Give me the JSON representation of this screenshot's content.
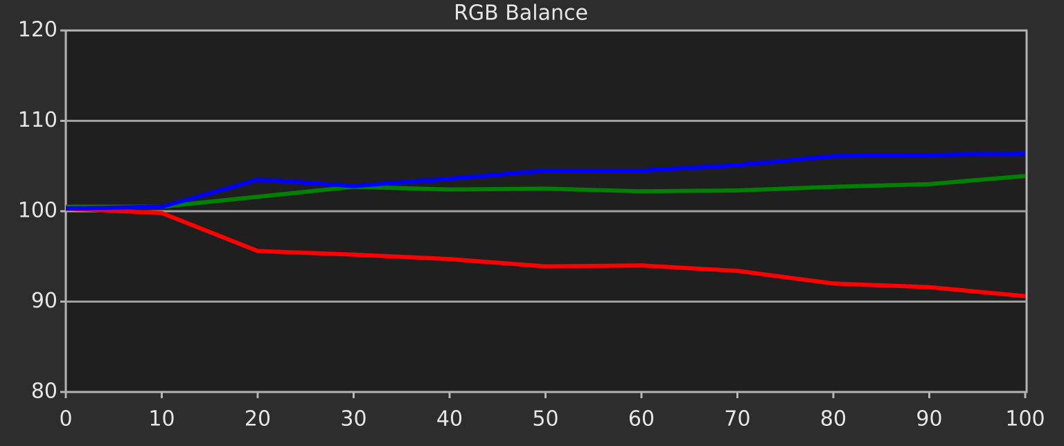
{
  "chart_data": {
    "type": "line",
    "title": "RGB Balance",
    "x": [
      0,
      10,
      20,
      30,
      40,
      50,
      60,
      70,
      80,
      90,
      100
    ],
    "series": [
      {
        "color": "#ff0000",
        "values": [
          100.3,
          99.8,
          95.6,
          95.2,
          94.7,
          93.9,
          94.0,
          93.4,
          92.0,
          91.6,
          90.6
        ]
      },
      {
        "color": "#008000",
        "values": [
          100.5,
          100.5,
          101.6,
          102.7,
          102.4,
          102.5,
          102.2,
          102.3,
          102.7,
          103.0,
          103.9
        ]
      },
      {
        "color": "#0000ff",
        "values": [
          100.3,
          100.5,
          103.5,
          102.8,
          103.6,
          104.5,
          104.5,
          105.1,
          106.1,
          106.2,
          106.4
        ]
      }
    ],
    "xlim": [
      0,
      100
    ],
    "xticks": [
      0,
      10,
      20,
      30,
      40,
      50,
      60,
      70,
      80,
      90,
      100
    ],
    "ylim": [
      80,
      120
    ],
    "yticks": [
      80,
      90,
      100,
      110,
      120
    ],
    "grid": true
  }
}
